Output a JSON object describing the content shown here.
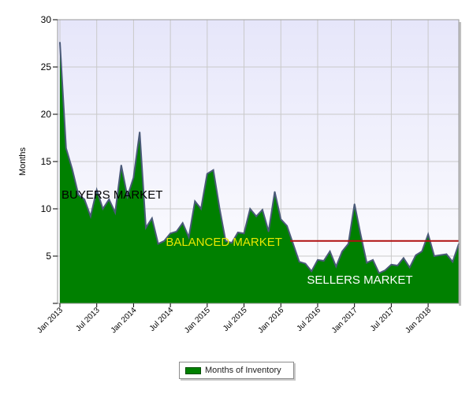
{
  "chart_data": {
    "type": "area",
    "title": "",
    "xlabel": "",
    "ylabel": "Months",
    "ylim": [
      0,
      30
    ],
    "yticks": [
      "30",
      "25",
      "20",
      "15",
      "10",
      "5"
    ],
    "x_tick_labels": [
      "Jan 2013",
      "Jul 2013",
      "Jan 2014",
      "Jul 2014",
      "Jan 2015",
      "Jul 2015",
      "Jan 2016",
      "Jul 2016",
      "Jan 2017",
      "Jul 2017",
      "Jan 2018"
    ],
    "x_start": "2013-01",
    "grid": true,
    "legend": "bottom-center",
    "series": [
      {
        "name": "Months of Inventory",
        "color": "#008000",
        "x": [
          "2013-01",
          "2013-02",
          "2013-03",
          "2013-04",
          "2013-05",
          "2013-06",
          "2013-07",
          "2013-08",
          "2013-09",
          "2013-10",
          "2013-11",
          "2013-12",
          "2014-01",
          "2014-02",
          "2014-03",
          "2014-04",
          "2014-05",
          "2014-06",
          "2014-07",
          "2014-08",
          "2014-09",
          "2014-10",
          "2014-11",
          "2014-12",
          "2015-01",
          "2015-02",
          "2015-03",
          "2015-04",
          "2015-05",
          "2015-06",
          "2015-07",
          "2015-08",
          "2015-09",
          "2015-10",
          "2015-11",
          "2015-12",
          "2016-01",
          "2016-02",
          "2016-03",
          "2016-04",
          "2016-05",
          "2016-06",
          "2016-07",
          "2016-08",
          "2016-09",
          "2016-10",
          "2016-11",
          "2016-12",
          "2017-01",
          "2017-02",
          "2017-03",
          "2017-04",
          "2017-05",
          "2017-06",
          "2017-07",
          "2017-08",
          "2017-09",
          "2017-10",
          "2017-11",
          "2017-12",
          "2018-01",
          "2018-02",
          "2018-03",
          "2018-04",
          "2018-05",
          "2018-06"
        ],
        "values": [
          27.6,
          16.4,
          14.2,
          11.5,
          11.0,
          9.2,
          12.0,
          10.0,
          11.0,
          9.6,
          14.6,
          11.3,
          13.3,
          18.1,
          8.0,
          9.0,
          6.3,
          6.6,
          7.4,
          7.6,
          8.5,
          7.0,
          10.8,
          10.0,
          13.7,
          14.1,
          10.1,
          6.6,
          6.4,
          7.5,
          7.4,
          10.0,
          9.2,
          9.9,
          7.6,
          11.8,
          8.9,
          8.2,
          6.3,
          4.4,
          4.2,
          3.4,
          4.6,
          4.5,
          5.5,
          3.9,
          5.5,
          6.3,
          10.5,
          7.3,
          4.3,
          4.6,
          3.2,
          3.5,
          4.1,
          4.0,
          4.8,
          3.8,
          5.1,
          5.5,
          7.3,
          5.0,
          5.1,
          5.2,
          4.4,
          6.3
        ]
      }
    ],
    "reference_line": {
      "value": 6.6,
      "x_from": "2016-02",
      "x_to": "2018-06",
      "color": "#b01010"
    },
    "annotations": [
      {
        "text": "BUYERS MARKET",
        "x": "2013-01",
        "y": 11.5,
        "color": "#000000"
      },
      {
        "text": "BALANCED MARKET",
        "x": "2014-06",
        "y": 6.5,
        "color": "#e8e800"
      },
      {
        "text": "SELLERS MARKET",
        "x": "2016-05",
        "y": 2.5,
        "color": "#ffffff"
      }
    ]
  },
  "legend": {
    "label": "Months of Inventory",
    "color": "#008000"
  }
}
